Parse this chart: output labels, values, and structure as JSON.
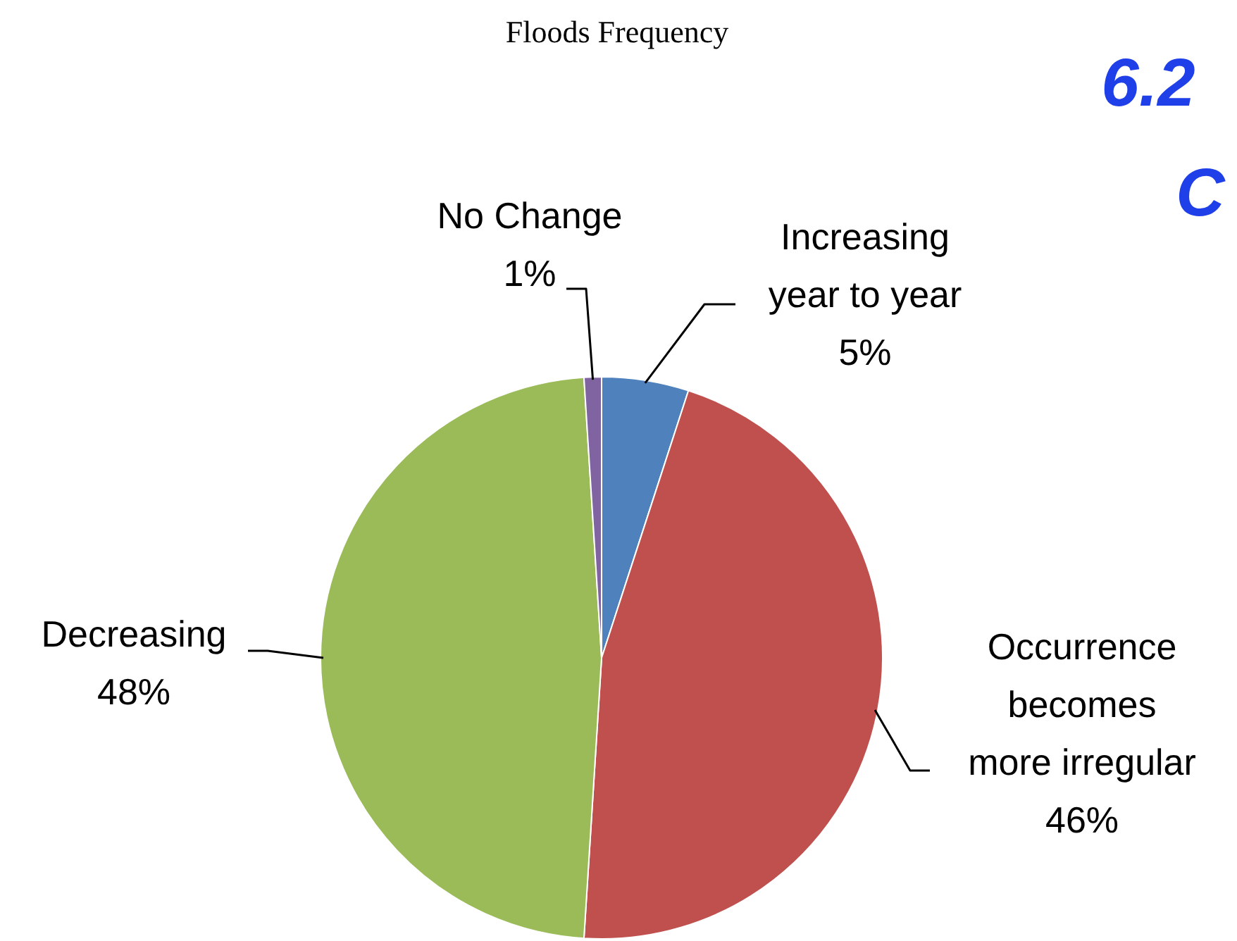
{
  "chart_data": {
    "type": "pie",
    "title": "Floods Frequency",
    "categories": [
      "Increasing\nyear to year",
      "Occurrence\nbecomes\nmore irregular",
      "Decreasing",
      "No Change"
    ],
    "values": [
      5,
      46,
      48,
      1
    ],
    "colors": [
      "#4f81bd",
      "#c0504d",
      "#9bbb59",
      "#8064a2"
    ],
    "value_labels": [
      "5%",
      "46%",
      "48%",
      "1%"
    ],
    "legend": false,
    "annotations": [
      "6.2",
      "C"
    ]
  }
}
